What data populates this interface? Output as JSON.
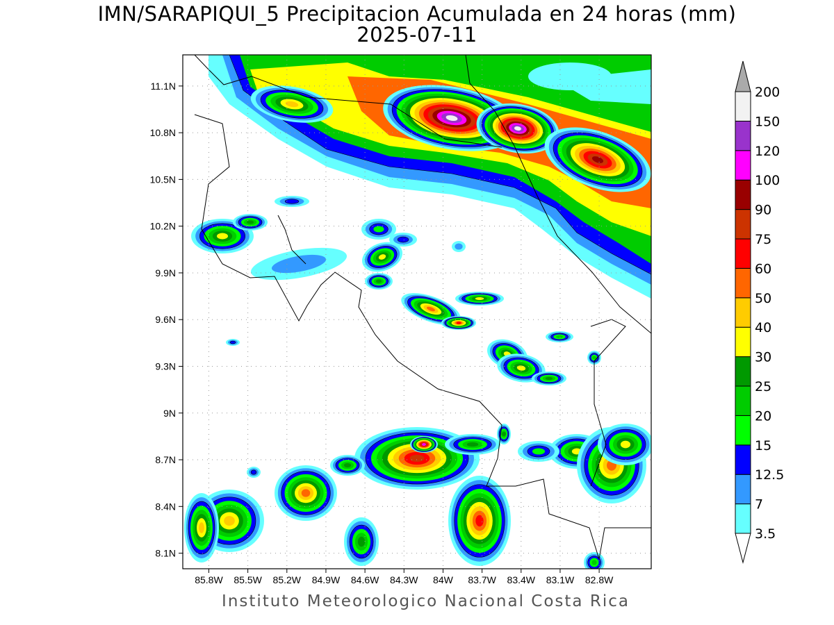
{
  "title": "IMN/SARAPIQUI_5 Precipitacion Acumulada en 24 horas (mm)",
  "date": "2025-07-11",
  "footer": "Instituto Meteorologico Nacional Costa Rica",
  "map": {
    "lon_range": [
      -86.0,
      -82.4
    ],
    "lat_range": [
      8.0,
      11.3
    ],
    "lon_ticks": [
      "85.8W",
      "85.5W",
      "85.2W",
      "84.9W",
      "84.6W",
      "84.3W",
      "84W",
      "83.7W",
      "83.4W",
      "83.1W",
      "82.8W"
    ],
    "lat_ticks": [
      "11.1N",
      "10.8N",
      "10.5N",
      "10.2N",
      "9.9N",
      "9.6N",
      "9.3N",
      "9N",
      "8.7N",
      "8.4N",
      "8.1N"
    ],
    "grid": true
  },
  "colorbar": {
    "labels": [
      "3.5",
      "7",
      "12.5",
      "15",
      "20",
      "25",
      "30",
      "40",
      "50",
      "60",
      "75",
      "90",
      "100",
      "120",
      "150",
      "200"
    ],
    "colors": [
      "#66ffff",
      "#3399ff",
      "#0000ff",
      "#00ff00",
      "#00cc00",
      "#009900",
      "#ffff00",
      "#ffcc00",
      "#ff6600",
      "#ff0000",
      "#cc3300",
      "#990000",
      "#ff00ff",
      "#9933cc",
      "#f2f2f2"
    ],
    "under_color": "#ffffff",
    "over_color": "#aaaaaa"
  }
}
